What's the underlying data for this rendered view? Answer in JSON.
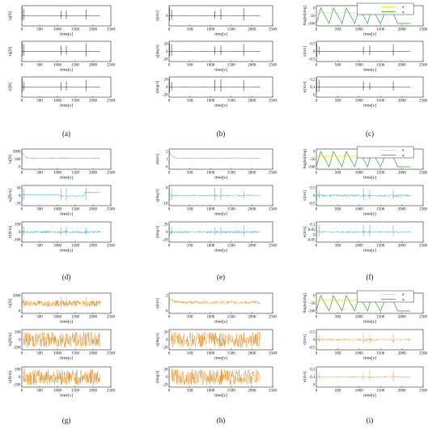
{
  "chart_data": {
    "type": "line",
    "x_ticks": [
      "0",
      "500",
      "1000",
      "1500",
      "2000",
      "2500"
    ],
    "xlim": [
      0,
      2500
    ],
    "xlabel": "time[s]",
    "colors": {
      "black": "#000000",
      "teal": "#16a8a0",
      "orange": "#e8901e",
      "green": "#2aa02a",
      "yellow": "#e8e000"
    },
    "legend": [
      "θ",
      "ψ"
    ],
    "panels": [
      {
        "id": "a",
        "caption": "(a)",
        "color": "#000000",
        "noise": 0,
        "rows": [
          {
            "ylabel": "τu[N]",
            "yticks": [],
            "trace": "impulse"
          },
          {
            "ylabel": "τq[N]",
            "yticks": [],
            "trace": "impulse"
          },
          {
            "ylabel": "τr[N]",
            "yticks": [],
            "trace": "impulse"
          }
        ]
      },
      {
        "id": "b",
        "caption": "(b)",
        "color": "#000000",
        "noise": 0,
        "rows": [
          {
            "ylabel": "u[m/s]",
            "yticks": [
              "0"
            ],
            "trace": "flat"
          },
          {
            "ylabel": "q[deg/s]",
            "yticks": [
              "20",
              "0",
              "-20"
            ],
            "trace": "impulse"
          },
          {
            "ylabel": "r[deg/s]",
            "yticks": [
              "20",
              "0",
              "-20"
            ],
            "trace": "impulse"
          }
        ]
      },
      {
        "id": "c",
        "caption": "(c)",
        "color": "#000000",
        "noise": 0,
        "rows": [
          {
            "ylabel": "Angles[deg]",
            "yticks": [
              "0",
              "-50",
              "-100"
            ],
            "trace": "angles"
          },
          {
            "ylabel": "v[m/s]",
            "yticks": [
              "0.5",
              "0",
              "-0.5"
            ],
            "trace": "flat"
          },
          {
            "ylabel": "w[m/s]",
            "yticks": [
              "0.2",
              "0.1",
              "0"
            ],
            "trace": "impulse"
          }
        ]
      },
      {
        "id": "d",
        "caption": "(d)",
        "color": "#16a8a0",
        "noise": 1,
        "rows": [
          {
            "ylabel": "τu[N]",
            "yticks": [
              "1000",
              "500",
              "0"
            ],
            "trace": "decay"
          },
          {
            "ylabel": "τq[N/m]",
            "yticks": [
              "50",
              "0",
              "-50"
            ],
            "trace": "step"
          },
          {
            "ylabel": "τr[N/m]",
            "yticks": [
              "100",
              "0",
              "-100"
            ],
            "trace": "flat"
          }
        ]
      },
      {
        "id": "e",
        "caption": "(e)",
        "color": "#16a8a0",
        "noise": 1,
        "rows": [
          {
            "ylabel": "u[m/s]",
            "yticks": [
              "2",
              "1",
              "0"
            ],
            "trace": "decay"
          },
          {
            "ylabel": "q[deg/s]",
            "yticks": [
              "0",
              "-10"
            ],
            "trace": "impulse"
          },
          {
            "ylabel": "r[deg/s]",
            "yticks": [
              "20",
              "0",
              "-20"
            ],
            "trace": "flat"
          }
        ]
      },
      {
        "id": "f",
        "caption": "(f)",
        "color": "#16a8a0",
        "noise": 1,
        "rows": [
          {
            "ylabel": "Angles[deg]",
            "yticks": [
              "0",
              "-50",
              "-100"
            ],
            "trace": "angles"
          },
          {
            "ylabel": "v[m/s]",
            "yticks": [
              "0.5",
              "0",
              "-0.5"
            ],
            "trace": "flat"
          },
          {
            "ylabel": "w[m/s]",
            "yticks": [
              "0.1",
              "0.05",
              "0",
              "-0.05"
            ],
            "trace": "impulse"
          }
        ]
      },
      {
        "id": "g",
        "caption": "(g)",
        "color": "#e8901e",
        "noise": 2,
        "rows": [
          {
            "ylabel": "τu[N]",
            "yticks": [
              "1000",
              "0"
            ],
            "trace": "flat"
          },
          {
            "ylabel": "τq[N/m]",
            "yticks": [
              "200",
              "0",
              "-200"
            ],
            "trace": "dense"
          },
          {
            "ylabel": "τr[N/m]",
            "yticks": [
              "200",
              "0",
              "-200"
            ],
            "trace": "dense"
          }
        ]
      },
      {
        "id": "h",
        "caption": "(h)",
        "color": "#e8901e",
        "noise": 2,
        "rows": [
          {
            "ylabel": "u[m/s]",
            "yticks": [
              "2",
              "0"
            ],
            "trace": "decay"
          },
          {
            "ylabel": "q[deg/s]",
            "yticks": [
              "20",
              "0",
              "-20"
            ],
            "trace": "dense"
          },
          {
            "ylabel": "r[deg/s]",
            "yticks": [
              "20",
              "0",
              "-20"
            ],
            "trace": "dense"
          }
        ]
      },
      {
        "id": "i",
        "caption": "(i)",
        "color": "#e8901e",
        "noise": 1,
        "rows": [
          {
            "ylabel": "Angles[deg]",
            "yticks": [
              "0",
              "-50",
              "-100"
            ],
            "trace": "angles"
          },
          {
            "ylabel": "v[m/s]",
            "yticks": [
              "0.5",
              "0",
              "-0.5"
            ],
            "trace": "flat"
          },
          {
            "ylabel": "w[m/s]",
            "yticks": [
              "0.2",
              "0.1",
              "0"
            ],
            "trace": "impulse"
          }
        ]
      }
    ]
  }
}
